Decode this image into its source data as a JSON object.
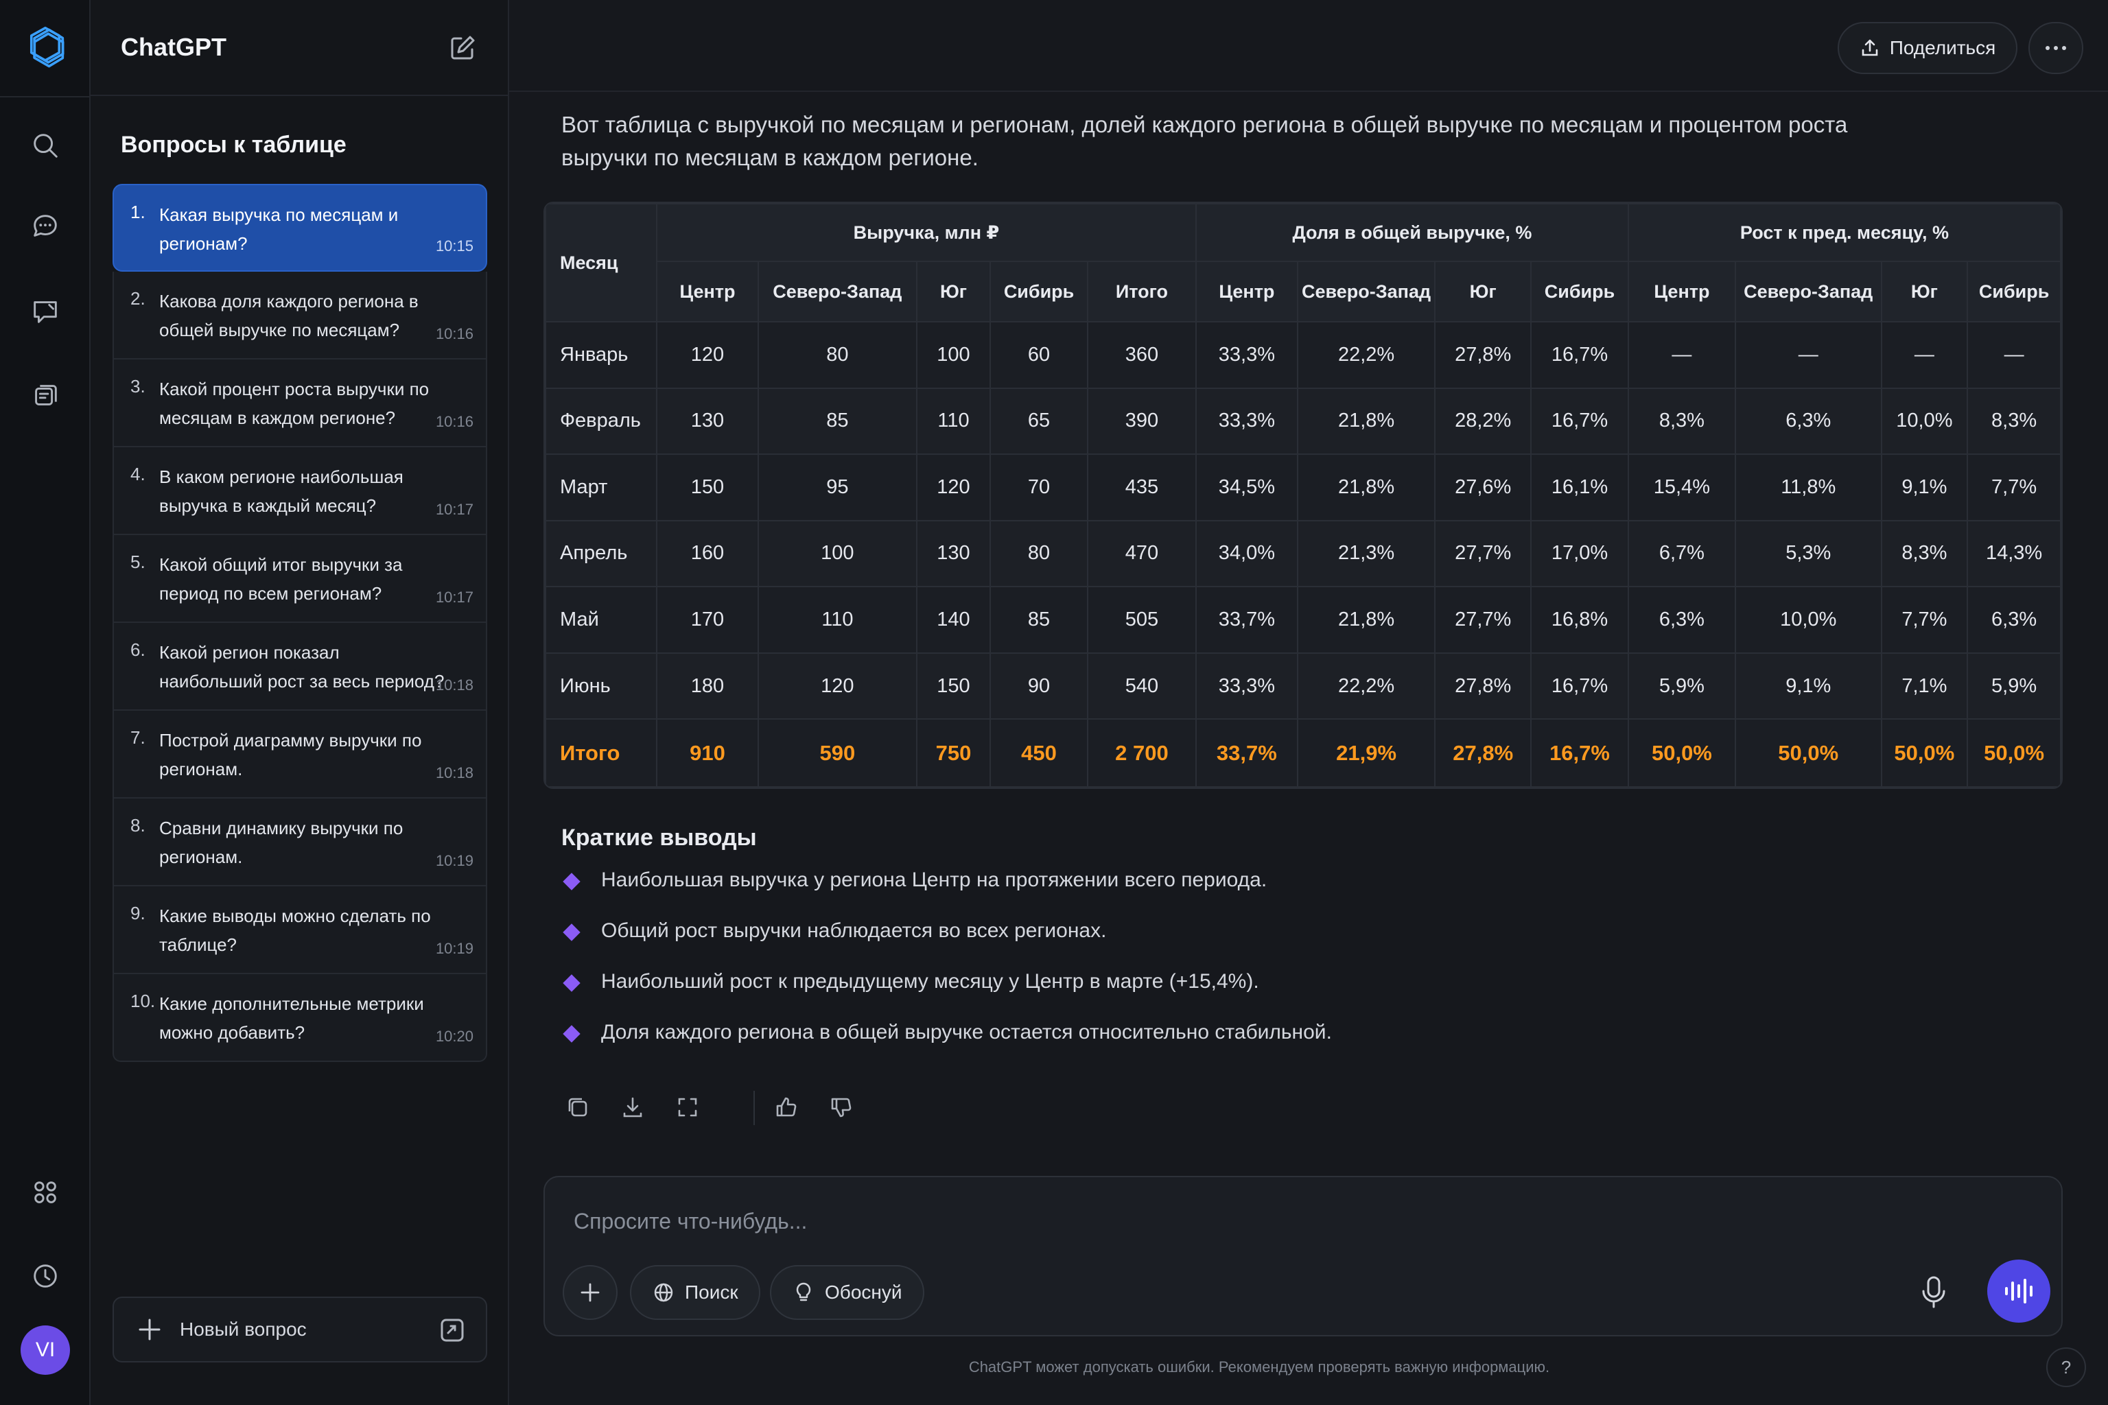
{
  "app": {
    "name": "ChatGPT",
    "user_initials": "VI"
  },
  "sidebar": {
    "section_title": "Вопросы к таблице",
    "questions": [
      {
        "num": "1.",
        "text": "Какая выручка по месяцам и регионам?",
        "time": "10:15"
      },
      {
        "num": "2.",
        "text": "Какова доля каждого региона в общей выручке по месяцам?",
        "time": "10:16"
      },
      {
        "num": "3.",
        "text": "Какой процент роста выручки по месяцам в каждом регионе?",
        "time": "10:16"
      },
      {
        "num": "4.",
        "text": "В каком регионе наибольшая выручка в каждый месяц?",
        "time": "10:17"
      },
      {
        "num": "5.",
        "text": "Какой общий итог выручки за период по всем регионам?",
        "time": "10:17"
      },
      {
        "num": "6.",
        "text": "Какой регион показал наибольший рост за весь период?",
        "time": "10:18"
      },
      {
        "num": "7.",
        "text": "Построй диаграмму выручки по регионам.",
        "time": "10:18"
      },
      {
        "num": "8.",
        "text": "Сравни динамику выручки по регионам.",
        "time": "10:19"
      },
      {
        "num": "9.",
        "text": "Какие выводы можно сделать по таблице?",
        "time": "10:19"
      },
      {
        "num": "10.",
        "text": "Какие дополнительные метрики можно добавить?",
        "time": "10:20"
      }
    ],
    "new_question_label": "Новый вопрос"
  },
  "header": {
    "share_label": "Поделиться"
  },
  "message": {
    "intro": "Вот таблица с выручкой по месяцам и регионам, долей каждого региона в общей выручке по месяцам и процентом роста выручки по месяцам в каждом регионе.",
    "table": {
      "month_header": "Месяц",
      "groups": [
        "Выручка, млн ₽",
        "Доля в общей выручке, %",
        "Рост к пред. месяцу, %"
      ],
      "sub_revenue": [
        "Центр",
        "Северо-Запад",
        "Юг",
        "Сибирь",
        "Итого"
      ],
      "sub_share": [
        "Центр",
        "Северо-Запад",
        "Юг",
        "Сибирь"
      ],
      "sub_growth": [
        "Центр",
        "Северо-Запад",
        "Юг",
        "Сибирь"
      ],
      "rows": [
        [
          "Январь",
          "120",
          "80",
          "100",
          "60",
          "360",
          "33,3%",
          "22,2%",
          "27,8%",
          "16,7%",
          "—",
          "—",
          "—",
          "—"
        ],
        [
          "Февраль",
          "130",
          "85",
          "110",
          "65",
          "390",
          "33,3%",
          "21,8%",
          "28,2%",
          "16,7%",
          "8,3%",
          "6,3%",
          "10,0%",
          "8,3%"
        ],
        [
          "Март",
          "150",
          "95",
          "120",
          "70",
          "435",
          "34,5%",
          "21,8%",
          "27,6%",
          "16,1%",
          "15,4%",
          "11,8%",
          "9,1%",
          "7,7%"
        ],
        [
          "Апрель",
          "160",
          "100",
          "130",
          "80",
          "470",
          "34,0%",
          "21,3%",
          "27,7%",
          "17,0%",
          "6,7%",
          "5,3%",
          "8,3%",
          "14,3%"
        ],
        [
          "Май",
          "170",
          "110",
          "140",
          "85",
          "505",
          "33,7%",
          "21,8%",
          "27,7%",
          "16,8%",
          "6,3%",
          "10,0%",
          "7,7%",
          "6,3%"
        ],
        [
          "Июнь",
          "180",
          "120",
          "150",
          "90",
          "540",
          "33,3%",
          "22,2%",
          "27,8%",
          "16,7%",
          "5,9%",
          "9,1%",
          "7,1%",
          "5,9%"
        ]
      ],
      "total": [
        "Итого",
        "910",
        "590",
        "750",
        "450",
        "2 700",
        "33,7%",
        "21,9%",
        "27,8%",
        "16,7%",
        "50,0%",
        "50,0%",
        "50,0%",
        "50,0%"
      ]
    },
    "conclusions_title": "Краткие выводы",
    "conclusions": [
      "Наибольшая выручка у региона Центр на протяжении всего периода.",
      "Общий рост выручки наблюдается во всех регионах.",
      "Наибольший рост к предыдущему месяцу у Центр в марте (+15,4%).",
      "Доля каждого региона в общей выручке остается относительно стабильной."
    ]
  },
  "composer": {
    "placeholder": "Спросите что-нибудь...",
    "search_label": "Поиск",
    "reason_label": "Обоснуй"
  },
  "footer_note": "ChatGPT может допускать ошибки. Рекомендуем проверять важную информацию.",
  "help_label": "?",
  "colors": {
    "accent": "#1f4fa8",
    "total_row": "#ff9a1f",
    "bullet": "#8b5cf6",
    "voice_button": "#4f46e5"
  }
}
